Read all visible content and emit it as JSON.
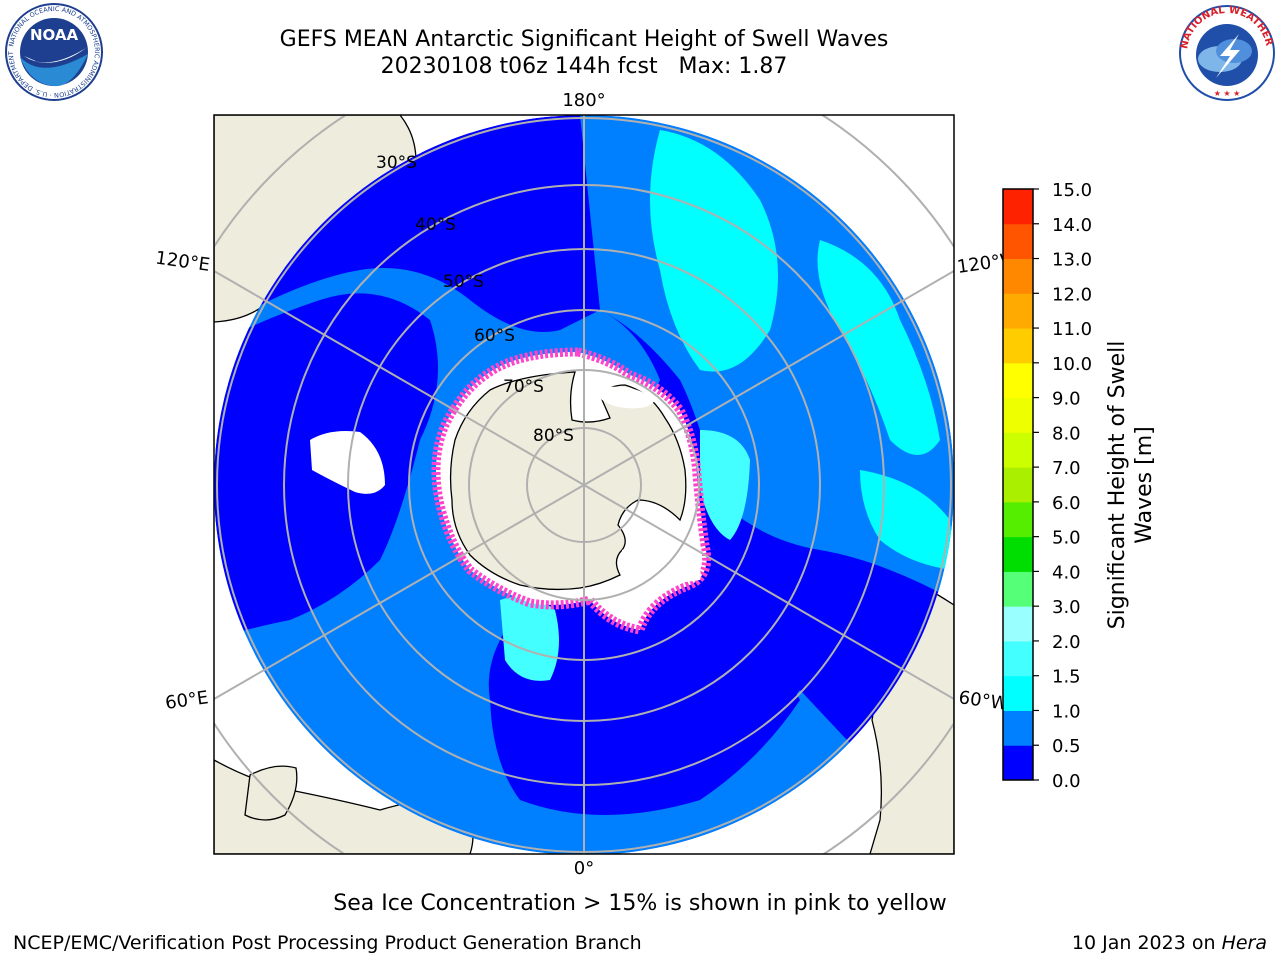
{
  "header": {
    "title_line1": "GEFS MEAN Antarctic Significant Height of Swell Waves",
    "title_line2": "20230108 t06z 144h fcst   Max: 1.87"
  },
  "logos": {
    "left": {
      "name": "NOAA",
      "text": "NOAA",
      "ring_text": "NATIONAL OCEANIC AND ATMOSPHERIC ADMINISTRATION · U.S. DEPARTMENT OF COMMERCE",
      "colors": [
        "#1e3f8f",
        "#2a8bd4",
        "#ffffff"
      ]
    },
    "right": {
      "name": "National Weather Service",
      "ring_text": "NATIONAL WEATHER SERVICE",
      "colors": [
        "#d8202a",
        "#1f4fa8",
        "#ffffff"
      ]
    }
  },
  "map": {
    "projection": "south-polar-stereographic",
    "meridian_labels": {
      "top": "180°",
      "bottom": "0°",
      "left_upper": "120°E",
      "left_lower": "60°E",
      "right_upper": "120°W",
      "right_lower": "60°W"
    },
    "parallel_labels": [
      "30°S",
      "40°S",
      "50°S",
      "60°S",
      "70°S",
      "80°S"
    ],
    "colors": {
      "land": "#eeecdc",
      "ocean_low": "#0000ff",
      "ocean_mid": "#0080ff",
      "ocean_high": "#00ffff",
      "ocean_cyan_light": "#44ffff",
      "ice_pink": "#ff44cc",
      "ice_white": "#ffffff",
      "grid": "#b0b0b0"
    }
  },
  "colorbar": {
    "label_line1": "Significant Height of Swell",
    "label_line2": "Waves [m]",
    "ticks": [
      "0.0",
      "0.5",
      "1.0",
      "1.5",
      "2.0",
      "3.0",
      "4.0",
      "5.0",
      "6.0",
      "7.0",
      "8.0",
      "9.0",
      "10.0",
      "11.0",
      "12.0",
      "13.0",
      "14.0",
      "15.0"
    ],
    "colors": [
      "#0000ff",
      "#0080ff",
      "#00ffff",
      "#44ffff",
      "#99ffff",
      "#55ff77",
      "#00dd00",
      "#55ee00",
      "#aaee00",
      "#ccff00",
      "#eeff00",
      "#ffff00",
      "#ffcc00",
      "#ffaa00",
      "#ff8800",
      "#ff5500",
      "#ff2200",
      "#ff0000"
    ]
  },
  "footer": {
    "ice_note": "Sea Ice Concentration > 15% is shown in pink to yellow",
    "left": "NCEP/EMC/Verification Post Processing Product Generation Branch",
    "right_prefix": "10 Jan 2023 on ",
    "right_host": "Hera"
  }
}
